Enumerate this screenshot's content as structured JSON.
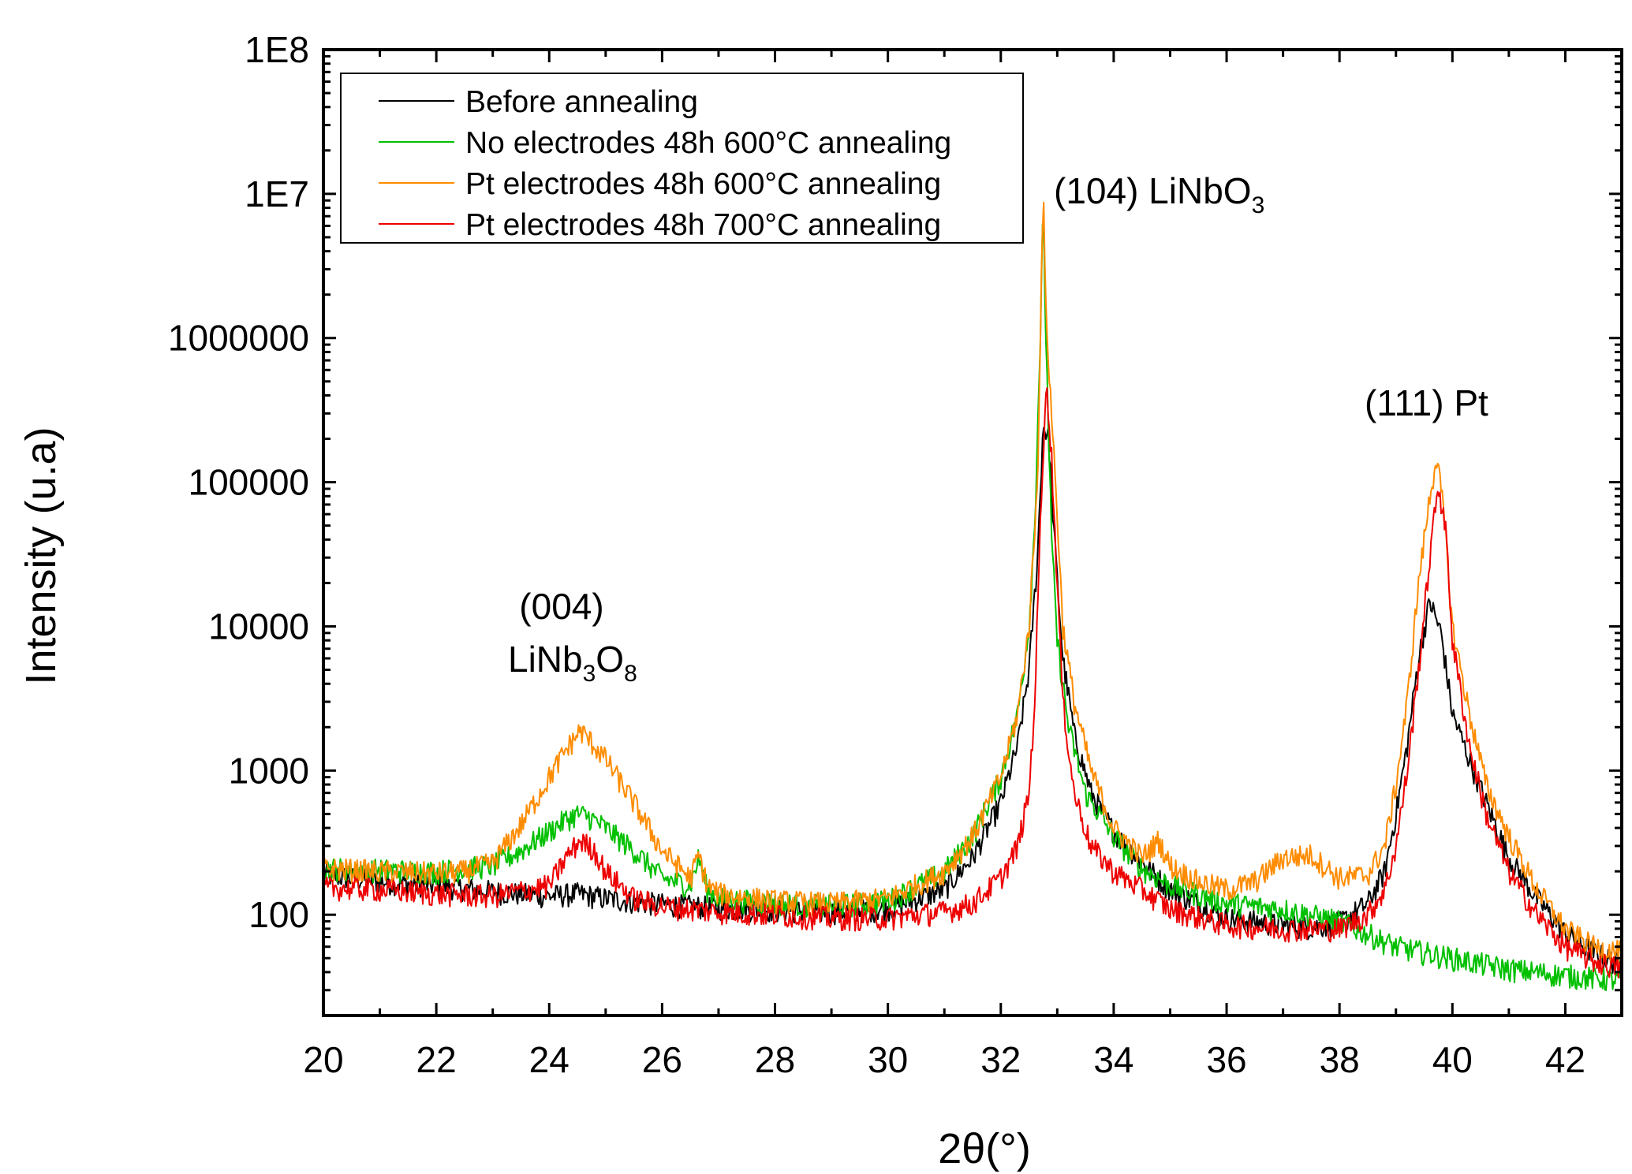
{
  "chart_data": {
    "type": "line",
    "title": "",
    "xlabel": "2θ(°)",
    "ylabel": "Intensity (u.a)",
    "xlim": [
      20,
      43
    ],
    "ylim": [
      20,
      100000000
    ],
    "yscale": "log",
    "x_ticks": [
      20,
      22,
      24,
      26,
      28,
      30,
      32,
      34,
      36,
      38,
      40,
      42
    ],
    "x_tick_labels": [
      "20",
      "22",
      "24",
      "26",
      "28",
      "30",
      "32",
      "34",
      "36",
      "38",
      "40",
      "42"
    ],
    "y_ticks": [
      100,
      1000,
      10000,
      100000,
      1000000,
      10000000,
      100000000
    ],
    "y_tick_labels": [
      "100",
      "1000",
      "10000",
      "100000",
      "1000000",
      "1E7",
      "1E8"
    ],
    "grid": false,
    "legend_position": "top-left",
    "series": [
      {
        "name": "Before annealing",
        "color": "#000000",
        "x": [
          20,
          21,
          22,
          23,
          24,
          24.5,
          25,
          26,
          27,
          28,
          29,
          30,
          31,
          31.5,
          32,
          32.3,
          32.5,
          32.65,
          32.75,
          32.85,
          32.95,
          33.1,
          33.3,
          33.6,
          34,
          34.5,
          35,
          36,
          37,
          37.5,
          38,
          38.5,
          38.8,
          39,
          39.2,
          39.4,
          39.6,
          39.8,
          40,
          40.3,
          40.6,
          41,
          41.5,
          42,
          42.5,
          43
        ],
        "y": [
          190,
          170,
          160,
          145,
          135,
          140,
          130,
          118,
          112,
          108,
          105,
          110,
          150,
          250,
          600,
          1500,
          5000,
          30000,
          250000,
          200000,
          40000,
          6000,
          1800,
          700,
          380,
          230,
          150,
          95,
          85,
          82,
          88,
          120,
          200,
          500,
          1500,
          6000,
          15000,
          9000,
          2500,
          1200,
          600,
          250,
          130,
          75,
          55,
          45
        ]
      },
      {
        "name": "No electrodes 48h 600°C annealing",
        "color": "#00c000",
        "x": [
          20,
          21,
          22,
          23,
          23.5,
          24,
          24.3,
          24.5,
          24.7,
          25,
          25.5,
          26,
          26.5,
          26.65,
          26.8,
          27,
          28,
          29,
          30,
          31,
          31.5,
          32,
          32.3,
          32.5,
          32.6,
          32.7,
          32.75,
          32.8,
          32.9,
          33,
          33.2,
          33.5,
          34,
          34.5,
          35,
          36,
          37,
          38,
          39,
          40,
          41,
          42,
          43
        ],
        "y": [
          210,
          205,
          200,
          220,
          280,
          380,
          460,
          500,
          480,
          400,
          280,
          180,
          160,
          250,
          150,
          130,
          120,
          115,
          125,
          200,
          350,
          900,
          2500,
          10000,
          50000,
          1000000,
          8000000,
          1000000,
          40000,
          8000,
          2000,
          700,
          350,
          210,
          160,
          120,
          110,
          90,
          60,
          50,
          42,
          38,
          35
        ]
      },
      {
        "name": "Pt electrodes 48h 600°C annealing",
        "color": "#ff8c00",
        "x": [
          20,
          21,
          22,
          22.5,
          23,
          23.5,
          24,
          24.3,
          24.55,
          24.8,
          25,
          25.5,
          26,
          26.5,
          26.65,
          26.8,
          27,
          28,
          29,
          30,
          31,
          31.5,
          32,
          32.3,
          32.5,
          32.65,
          32.75,
          32.8,
          32.9,
          33,
          33.1,
          33.3,
          33.6,
          34,
          34.5,
          34.8,
          35,
          35.5,
          36,
          36.5,
          37,
          37.5,
          38,
          38.5,
          38.8,
          39,
          39.2,
          39.4,
          39.6,
          39.72,
          39.85,
          40,
          40.3,
          40.6,
          41,
          41.5,
          42,
          42.5,
          43
        ],
        "y": [
          210,
          200,
          195,
          200,
          230,
          420,
          900,
          1400,
          1900,
          1500,
          1200,
          600,
          280,
          180,
          260,
          160,
          140,
          125,
          120,
          130,
          200,
          350,
          900,
          2500,
          10000,
          100000,
          11000000,
          1500000,
          300000,
          60000,
          10000,
          3000,
          1000,
          400,
          250,
          330,
          220,
          170,
          150,
          170,
          250,
          260,
          180,
          190,
          300,
          800,
          3000,
          20000,
          80000,
          150000,
          60000,
          10000,
          2500,
          800,
          350,
          150,
          80,
          60,
          55
        ]
      },
      {
        "name": "Pt electrodes 48h 700°C annealing",
        "color": "#ee0000",
        "x": [
          20,
          21,
          22,
          23,
          24,
          24.3,
          24.55,
          24.8,
          25,
          25.5,
          26,
          27,
          28,
          29,
          30,
          31,
          31.5,
          32,
          32.3,
          32.5,
          32.6,
          32.7,
          32.8,
          32.9,
          33,
          33.1,
          33.3,
          33.6,
          34,
          34.5,
          35,
          36,
          37,
          38,
          38.5,
          38.8,
          39,
          39.2,
          39.4,
          39.6,
          39.75,
          39.9,
          40,
          40.3,
          40.6,
          41,
          41.5,
          42,
          42.5,
          43
        ],
        "y": [
          155,
          150,
          140,
          135,
          160,
          250,
          330,
          280,
          200,
          130,
          115,
          105,
          100,
          95,
          95,
          105,
          120,
          180,
          300,
          700,
          3000,
          50000,
          500000,
          150000,
          20000,
          3000,
          700,
          300,
          200,
          150,
          110,
          85,
          80,
          80,
          100,
          150,
          300,
          1000,
          5000,
          30000,
          100000,
          40000,
          8000,
          1500,
          500,
          200,
          100,
          60,
          48,
          42
        ]
      }
    ],
    "annotations": [
      {
        "parts": [
          "(004)"
        ]
      },
      {
        "parts": [
          "LiNb",
          "3",
          "O",
          "8"
        ]
      },
      {
        "parts": [
          "(104) LiNbO",
          "3"
        ]
      },
      {
        "parts": [
          "(111) Pt"
        ]
      }
    ]
  }
}
